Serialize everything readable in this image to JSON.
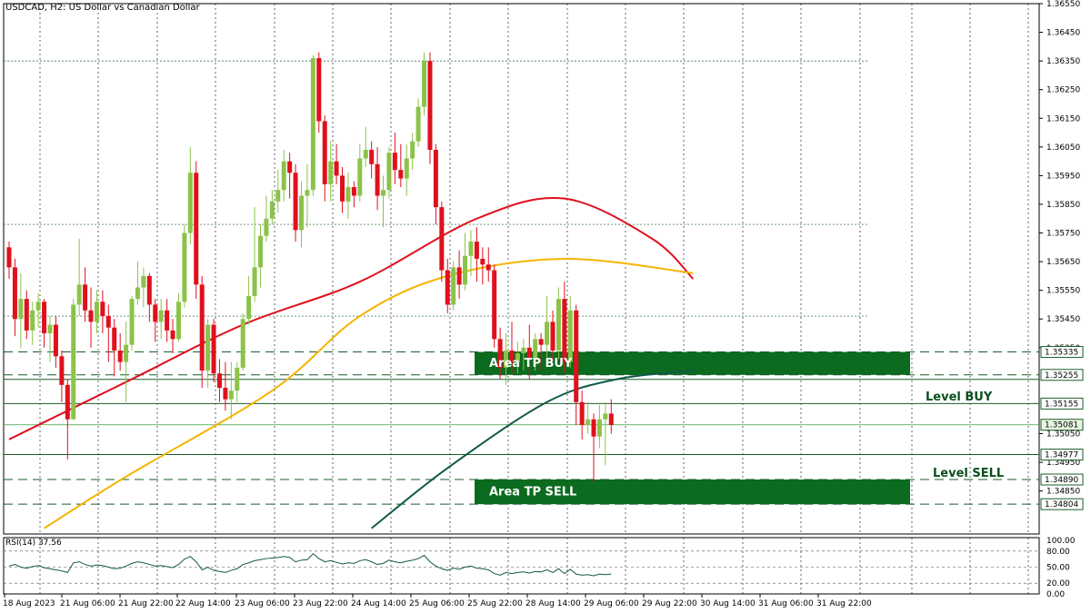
{
  "header": {
    "title": "USDCAD, H2:  US Dollar vs Canadian Dollar"
  },
  "rsi": {
    "label": "RSI(14) 37.56",
    "ticks": [
      "100.00",
      "80.00",
      "50.00",
      "20.00",
      "0.00"
    ],
    "value": 37.56
  },
  "colors": {
    "bull": "#8bc34a",
    "bear": "#e0101c",
    "ma_fast": "#e0101c",
    "ma_mid": "#f5b400",
    "ma_slow": "#11594a",
    "zone": "#0b6b1e",
    "level_text": "#0a4f1c"
  },
  "chart_data": {
    "type": "candlestick",
    "symbol": "USDCAD",
    "timeframe": "H2",
    "ylim": [
      1.347,
      1.3655
    ],
    "price_ticks": [
      "1.36550",
      "1.36450",
      "1.36350",
      "1.36250",
      "1.36150",
      "1.36050",
      "1.35950",
      "1.35850",
      "1.35750",
      "1.35650",
      "1.35550",
      "1.35450",
      "1.35350",
      "1.35050",
      "1.34950",
      "1.34850"
    ],
    "time_ticks": [
      "18 Aug 2023",
      "21 Aug 06:00",
      "21 Aug 22:00",
      "22 Aug 14:00",
      "23 Aug 06:00",
      "23 Aug 22:00",
      "24 Aug 14:00",
      "25 Aug 06:00",
      "25 Aug 22:00",
      "28 Aug 14:00",
      "29 Aug 06:00",
      "29 Aug 22:00",
      "30 Aug 14:00",
      "31 Aug 06:00",
      "31 Aug 22:00"
    ],
    "zones": [
      {
        "label": "Area TP BUY",
        "top": 1.35335,
        "bottom": 1.35255
      },
      {
        "label": "Area TP SELL",
        "top": 1.3489,
        "bottom": 1.34804
      }
    ],
    "levels": [
      {
        "label": "Level BUY",
        "price": 1.35155
      },
      {
        "label": "Level SELL",
        "price": 1.34977
      }
    ],
    "price_tags": [
      "1.35335",
      "1.35255",
      "1.35155",
      "1.35081",
      "1.34977",
      "1.34890",
      "1.34804"
    ],
    "current_price": "1.35081",
    "candles": [
      [
        1.357,
        1.3572,
        1.3559,
        1.3563
      ],
      [
        1.3563,
        1.3566,
        1.3539,
        1.3545
      ],
      [
        1.3545,
        1.3561,
        1.3535,
        1.3552
      ],
      [
        1.3552,
        1.3555,
        1.3538,
        1.3541
      ],
      [
        1.3541,
        1.3551,
        1.3536,
        1.3548
      ],
      [
        1.3548,
        1.3554,
        1.3542,
        1.3551
      ],
      [
        1.3551,
        1.3552,
        1.3535,
        1.354
      ],
      [
        1.354,
        1.3546,
        1.353,
        1.3543
      ],
      [
        1.3543,
        1.3546,
        1.3528,
        1.3532
      ],
      [
        1.3532,
        1.3534,
        1.3516,
        1.3522
      ],
      [
        1.3522,
        1.3524,
        1.3496,
        1.351
      ],
      [
        1.351,
        1.3552,
        1.351,
        1.355
      ],
      [
        1.355,
        1.3573,
        1.3546,
        1.3557
      ],
      [
        1.3557,
        1.3563,
        1.3544,
        1.3548
      ],
      [
        1.3548,
        1.3556,
        1.3535,
        1.3544
      ],
      [
        1.3544,
        1.3555,
        1.354,
        1.3551
      ],
      [
        1.3551,
        1.3555,
        1.354,
        1.3546
      ],
      [
        1.3546,
        1.355,
        1.353,
        1.3542
      ],
      [
        1.3542,
        1.3545,
        1.3525,
        1.3534
      ],
      [
        1.3534,
        1.354,
        1.3527,
        1.353
      ],
      [
        1.353,
        1.3544,
        1.3516,
        1.3536
      ],
      [
        1.3536,
        1.3553,
        1.3534,
        1.3552
      ],
      [
        1.3552,
        1.3565,
        1.355,
        1.3556
      ],
      [
        1.3556,
        1.3563,
        1.3549,
        1.356
      ],
      [
        1.356,
        1.3561,
        1.3544,
        1.355
      ],
      [
        1.355,
        1.3552,
        1.3537,
        1.3544
      ],
      [
        1.3544,
        1.3552,
        1.3538,
        1.3548
      ],
      [
        1.3548,
        1.3552,
        1.3537,
        1.3541
      ],
      [
        1.3541,
        1.3545,
        1.3533,
        1.3538
      ],
      [
        1.3538,
        1.3554,
        1.3537,
        1.3551
      ],
      [
        1.3551,
        1.3578,
        1.3549,
        1.3575
      ],
      [
        1.3575,
        1.3605,
        1.3571,
        1.3596
      ],
      [
        1.3596,
        1.36,
        1.3552,
        1.3557
      ],
      [
        1.3557,
        1.356,
        1.3521,
        1.3527
      ],
      [
        1.3527,
        1.3545,
        1.3521,
        1.3543
      ],
      [
        1.3543,
        1.3545,
        1.3523,
        1.3526
      ],
      [
        1.3526,
        1.3531,
        1.3516,
        1.3521
      ],
      [
        1.3521,
        1.353,
        1.3513,
        1.3517
      ],
      [
        1.3517,
        1.353,
        1.351,
        1.352
      ],
      [
        1.352,
        1.353,
        1.3516,
        1.3528
      ],
      [
        1.3528,
        1.3547,
        1.3527,
        1.3545
      ],
      [
        1.3545,
        1.356,
        1.3543,
        1.3553
      ],
      [
        1.3553,
        1.3584,
        1.3551,
        1.3563
      ],
      [
        1.3563,
        1.3578,
        1.3556,
        1.3574
      ],
      [
        1.3574,
        1.3588,
        1.3572,
        1.358
      ],
      [
        1.358,
        1.359,
        1.3578,
        1.3586
      ],
      [
        1.3586,
        1.3597,
        1.3582,
        1.359
      ],
      [
        1.359,
        1.3604,
        1.3586,
        1.36
      ],
      [
        1.36,
        1.3603,
        1.3587,
        1.3596
      ],
      [
        1.3596,
        1.3599,
        1.3572,
        1.3576
      ],
      [
        1.3576,
        1.3593,
        1.357,
        1.3588
      ],
      [
        1.3588,
        1.3599,
        1.3577,
        1.359
      ],
      [
        1.359,
        1.3637,
        1.3588,
        1.3636
      ],
      [
        1.3636,
        1.3638,
        1.361,
        1.3614
      ],
      [
        1.3614,
        1.3616,
        1.3586,
        1.3592
      ],
      [
        1.3592,
        1.3607,
        1.3586,
        1.36
      ],
      [
        1.36,
        1.3606,
        1.3592,
        1.3595
      ],
      [
        1.3595,
        1.3598,
        1.3582,
        1.3586
      ],
      [
        1.3586,
        1.3596,
        1.358,
        1.3591
      ],
      [
        1.3591,
        1.3593,
        1.3584,
        1.3588
      ],
      [
        1.3588,
        1.3606,
        1.3586,
        1.3601
      ],
      [
        1.3601,
        1.3612,
        1.3598,
        1.3604
      ],
      [
        1.3604,
        1.3607,
        1.3594,
        1.3599
      ],
      [
        1.3599,
        1.3605,
        1.3583,
        1.3588
      ],
      [
        1.3588,
        1.3595,
        1.3577,
        1.359
      ],
      [
        1.359,
        1.3605,
        1.3587,
        1.3603
      ],
      [
        1.3603,
        1.361,
        1.3592,
        1.3597
      ],
      [
        1.3597,
        1.3606,
        1.3591,
        1.3594
      ],
      [
        1.3594,
        1.3606,
        1.3588,
        1.3601
      ],
      [
        1.3601,
        1.361,
        1.3597,
        1.3607
      ],
      [
        1.3607,
        1.3622,
        1.3605,
        1.3619
      ],
      [
        1.3619,
        1.3638,
        1.3616,
        1.3635
      ],
      [
        1.3635,
        1.3638,
        1.3599,
        1.3604
      ],
      [
        1.3604,
        1.3606,
        1.3578,
        1.3584
      ],
      [
        1.3584,
        1.3586,
        1.3558,
        1.3562
      ],
      [
        1.3562,
        1.3566,
        1.3547,
        1.355
      ],
      [
        1.355,
        1.3565,
        1.3548,
        1.3563
      ],
      [
        1.3563,
        1.3569,
        1.3552,
        1.3557
      ],
      [
        1.3557,
        1.3575,
        1.3555,
        1.3567
      ],
      [
        1.3567,
        1.3576,
        1.356,
        1.3572
      ],
      [
        1.3572,
        1.3577,
        1.3558,
        1.3566
      ],
      [
        1.3566,
        1.357,
        1.3557,
        1.3564
      ],
      [
        1.3564,
        1.357,
        1.3558,
        1.3562
      ],
      [
        1.3562,
        1.3564,
        1.3535,
        1.3538
      ],
      [
        1.3538,
        1.3542,
        1.3524,
        1.3528
      ],
      [
        1.3528,
        1.354,
        1.3522,
        1.3534
      ],
      [
        1.3534,
        1.3544,
        1.3526,
        1.353
      ],
      [
        1.353,
        1.3537,
        1.3526,
        1.3533
      ],
      [
        1.3533,
        1.3538,
        1.3527,
        1.3535
      ],
      [
        1.3535,
        1.3543,
        1.3524,
        1.3531
      ],
      [
        1.3531,
        1.354,
        1.3527,
        1.3538
      ],
      [
        1.3538,
        1.354,
        1.3527,
        1.3536
      ],
      [
        1.3536,
        1.3553,
        1.3531,
        1.3544
      ],
      [
        1.3544,
        1.3548,
        1.353,
        1.3534
      ],
      [
        1.3534,
        1.3556,
        1.3531,
        1.3552
      ],
      [
        1.3552,
        1.3558,
        1.3526,
        1.353
      ],
      [
        1.353,
        1.3553,
        1.3528,
        1.3548
      ],
      [
        1.3548,
        1.355,
        1.3508,
        1.3516
      ],
      [
        1.3516,
        1.352,
        1.3503,
        1.3508
      ],
      [
        1.3508,
        1.3516,
        1.3505,
        1.351
      ],
      [
        1.351,
        1.3512,
        1.3488,
        1.3504
      ],
      [
        1.3504,
        1.3515,
        1.35,
        1.351
      ],
      [
        1.351,
        1.3516,
        1.3494,
        1.3512
      ],
      [
        1.3512,
        1.3517,
        1.3505,
        1.3508
      ]
    ],
    "moving_averages": [
      {
        "color": "#e0101c",
        "points": [
          [
            0,
            1.3503
          ],
          [
            20,
            1.3523
          ],
          [
            40,
            1.3543
          ],
          [
            60,
            1.3558
          ],
          [
            80,
            1.358
          ],
          [
            95,
            1.3587
          ],
          [
            110,
            1.3573
          ],
          [
            117,
            1.3559
          ]
        ]
      },
      {
        "color": "#f5b400",
        "points": [
          [
            6,
            1.3472
          ],
          [
            20,
            1.349
          ],
          [
            45,
            1.352
          ],
          [
            60,
            1.3546
          ],
          [
            75,
            1.356
          ],
          [
            95,
            1.3566
          ],
          [
            117,
            1.3561
          ]
        ]
      },
      {
        "color": "#11594a",
        "points": [
          [
            62,
            1.3472
          ],
          [
            75,
            1.3493
          ],
          [
            92,
            1.3516
          ],
          [
            104,
            1.3524
          ],
          [
            117,
            1.3527
          ]
        ]
      }
    ],
    "rsi_series": [
      52,
      55,
      50,
      48,
      51,
      53,
      49,
      47,
      45,
      43,
      40,
      58,
      60,
      55,
      52,
      54,
      53,
      50,
      47,
      48,
      52,
      57,
      60,
      58,
      55,
      52,
      53,
      51,
      49,
      55,
      65,
      70,
      60,
      45,
      50,
      44,
      42,
      40,
      44,
      47,
      55,
      58,
      62,
      64,
      66,
      67,
      68,
      70,
      68,
      60,
      63,
      64,
      75,
      66,
      60,
      62,
      59,
      56,
      58,
      57,
      62,
      64,
      60,
      55,
      57,
      63,
      60,
      58,
      61,
      63,
      66,
      72,
      60,
      52,
      47,
      44,
      48,
      46,
      50,
      52,
      48,
      47,
      45,
      38,
      35,
      40,
      38,
      40,
      41,
      39,
      42,
      41,
      45,
      40,
      47,
      38,
      46,
      37,
      35,
      36,
      34,
      37,
      36,
      37
    ]
  }
}
